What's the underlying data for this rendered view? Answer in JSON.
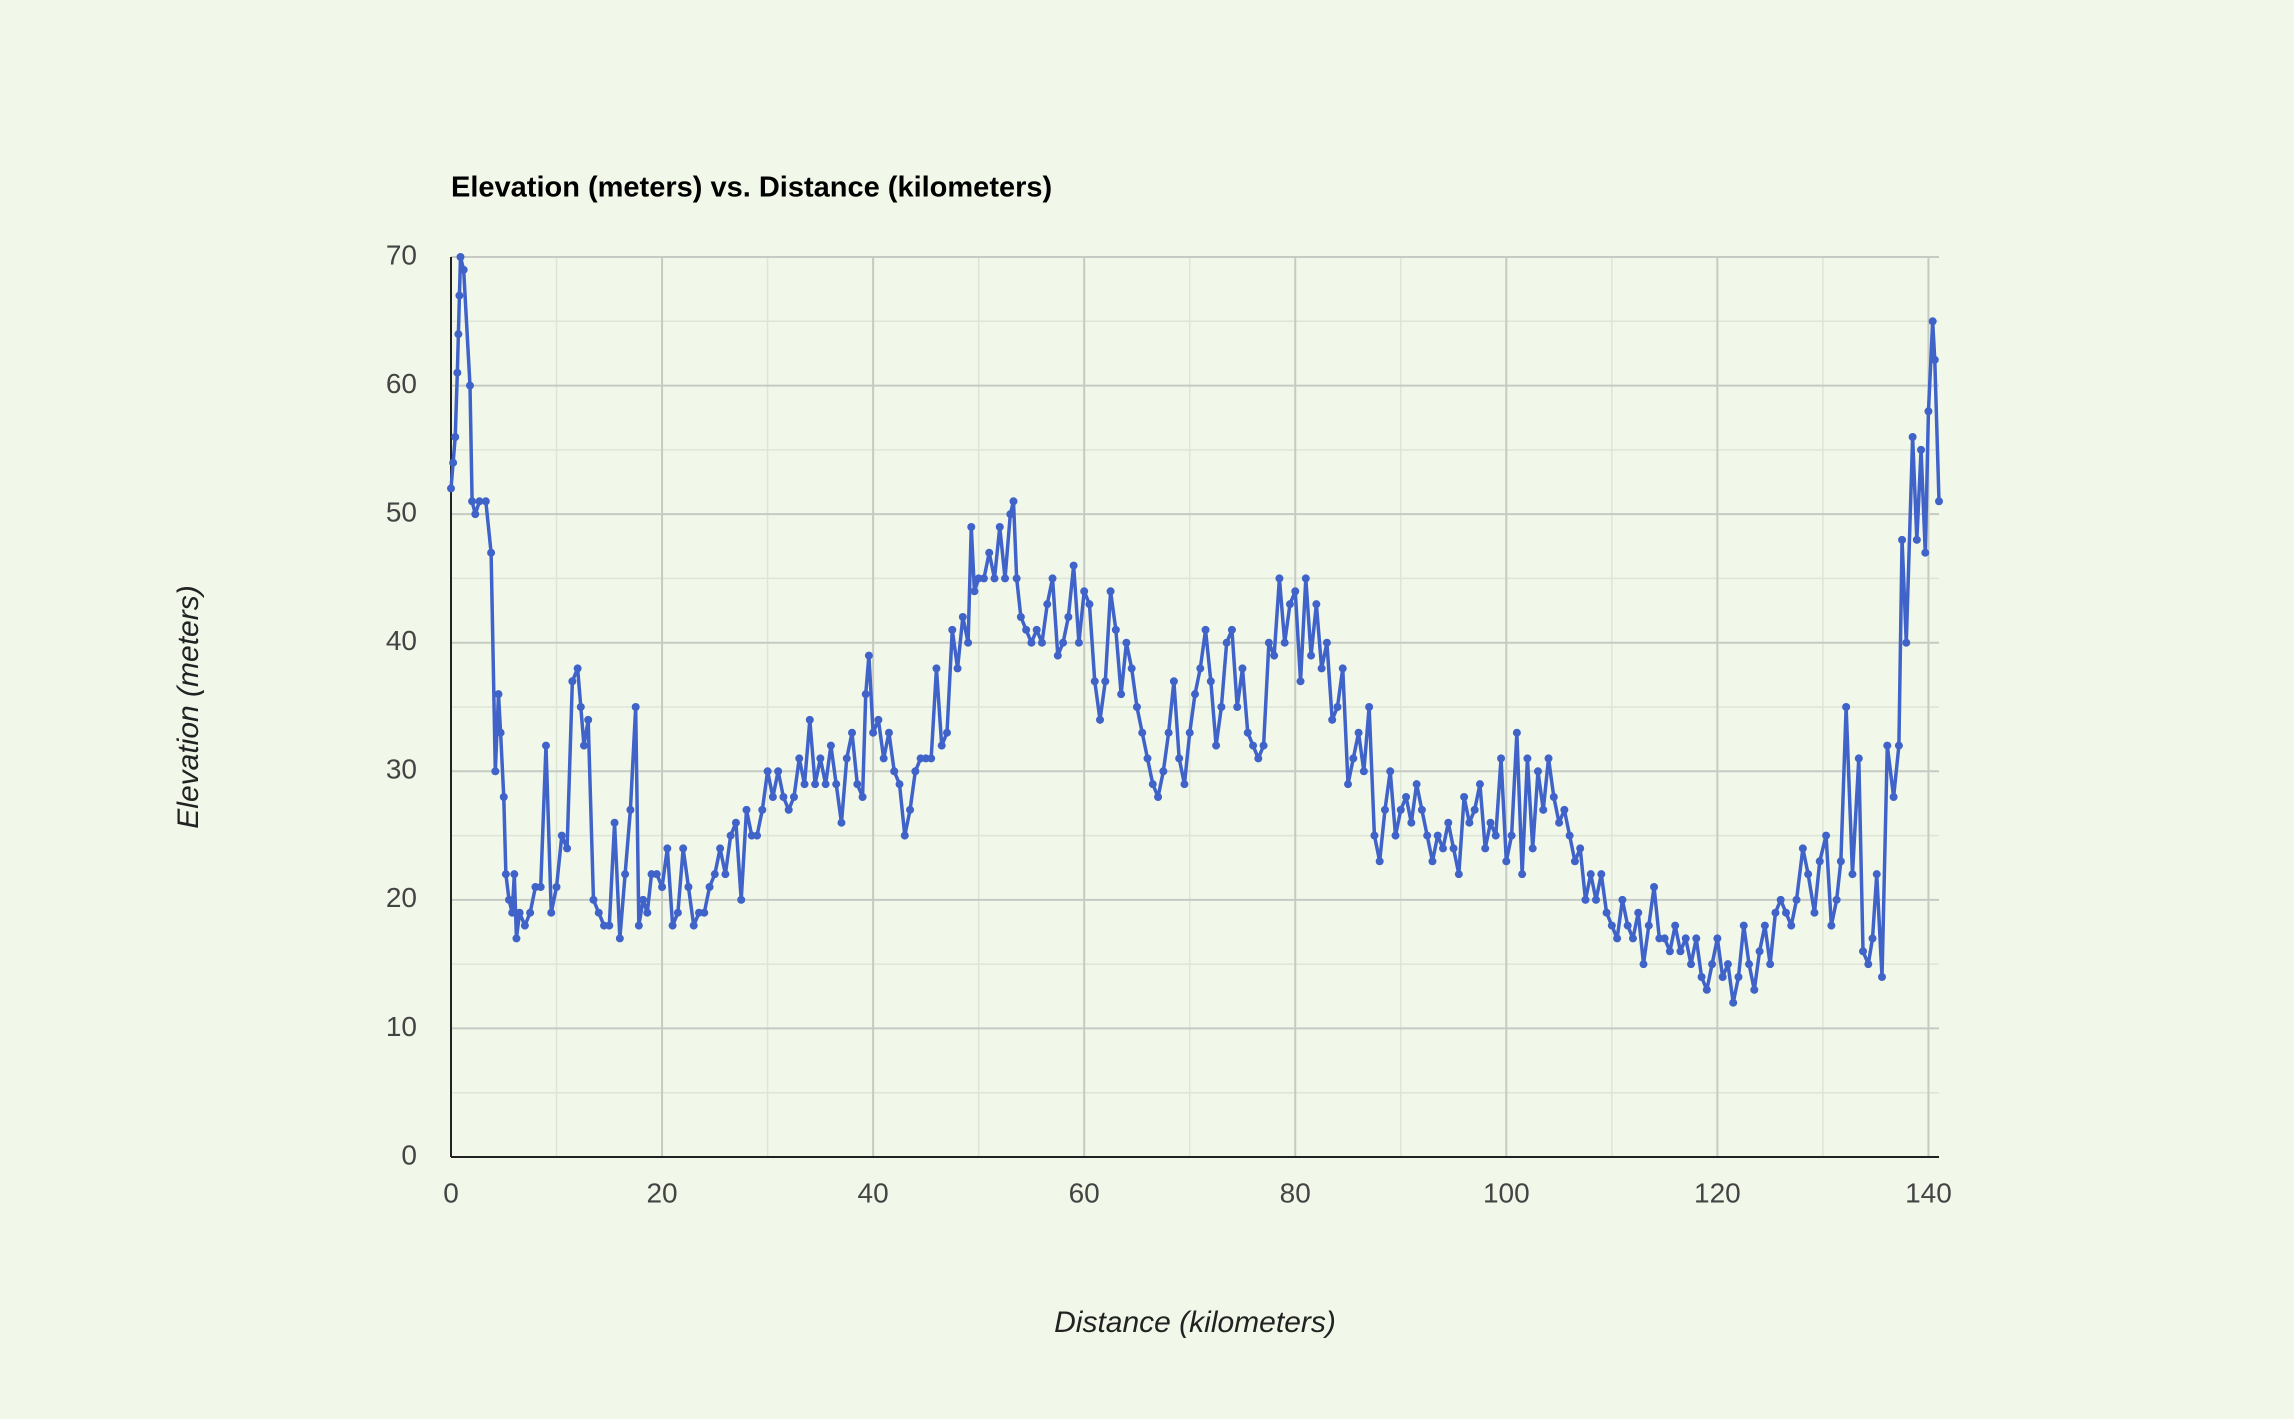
{
  "chart_data": {
    "type": "line",
    "title": "Elevation (meters) vs. Distance (kilometers)",
    "x_label": "Distance (kilometers)",
    "y_label": "Elevation (meters)",
    "color": "#4063c9",
    "grid": true,
    "minor_grid": true,
    "markers": true,
    "xlim": [
      0,
      141
    ],
    "xticks": [
      0,
      20,
      40,
      60,
      80,
      100,
      120,
      140
    ],
    "ylim": [
      0,
      70
    ],
    "yticks": [
      0,
      10,
      20,
      30,
      40,
      50,
      60,
      70
    ],
    "x": [
      0,
      0.2,
      0.4,
      0.6,
      0.7,
      0.8,
      0.9,
      1.2,
      1.8,
      2.0,
      2.3,
      2.7,
      3.3,
      3.8,
      4.2,
      4.5,
      4.7,
      5.0,
      5.2,
      5.5,
      5.8,
      6.0,
      6.2,
      6.5,
      7.0,
      7.5,
      8,
      8.5,
      9,
      9.5,
      10,
      10.5,
      11,
      11.5,
      12,
      12.3,
      12.6,
      13,
      13.5,
      14,
      14.5,
      15,
      15.5,
      16,
      16.5,
      17,
      17.5,
      17.8,
      18.2,
      18.6,
      19,
      19.5,
      20,
      20.5,
      21,
      21.5,
      22,
      22.5,
      23,
      23.5,
      24,
      24.5,
      25,
      25.5,
      26,
      26.5,
      27,
      27.5,
      28,
      28.5,
      29,
      29.5,
      30,
      30.5,
      31,
      31.5,
      32,
      32.5,
      33,
      33.5,
      34,
      34.5,
      35,
      35.5,
      36,
      36.5,
      37,
      37.5,
      38,
      38.5,
      39,
      39.3,
      39.6,
      40,
      40.5,
      41,
      41.5,
      42,
      42.5,
      43,
      43.5,
      44,
      44.5,
      45,
      45.5,
      46,
      46.5,
      47,
      47.5,
      48,
      48.5,
      49,
      49.3,
      49.6,
      50,
      50.5,
      51,
      51.5,
      52,
      52.5,
      53,
      53.3,
      53.6,
      54,
      54.5,
      55,
      55.5,
      56,
      56.5,
      57,
      57.5,
      58,
      58.5,
      59,
      59.5,
      60,
      60.5,
      61,
      61.5,
      62,
      62.5,
      63,
      63.5,
      64,
      64.5,
      65,
      65.5,
      66,
      66.5,
      67,
      67.5,
      68,
      68.5,
      69,
      69.5,
      70,
      70.5,
      71,
      71.5,
      72,
      72.5,
      73,
      73.5,
      74,
      74.5,
      75,
      75.5,
      76,
      76.5,
      77,
      77.5,
      78,
      78.5,
      79,
      79.5,
      80,
      80.5,
      81,
      81.5,
      82,
      82.5,
      83,
      83.5,
      84,
      84.5,
      85,
      85.5,
      86,
      86.5,
      87,
      87.5,
      88,
      88.5,
      89,
      89.5,
      90,
      90.5,
      91,
      91.5,
      92,
      92.5,
      93,
      93.5,
      94,
      94.5,
      95,
      95.5,
      96,
      96.5,
      97,
      97.5,
      98,
      98.5,
      99,
      99.5,
      100,
      100.5,
      101,
      101.5,
      102,
      102.5,
      103,
      103.5,
      104,
      104.5,
      105,
      105.5,
      106,
      106.5,
      107,
      107.5,
      108,
      108.5,
      109,
      109.5,
      110,
      110.5,
      111,
      111.5,
      112,
      112.5,
      113,
      113.5,
      114,
      114.5,
      115,
      115.5,
      116,
      116.5,
      117,
      117.5,
      118,
      118.5,
      119,
      119.5,
      120,
      120.5,
      121,
      121.5,
      122,
      122.5,
      123,
      123.5,
      124,
      124.5,
      125,
      125.5,
      126,
      126.5,
      127,
      127.5,
      128.1,
      128.6,
      129.2,
      129.7,
      130.3,
      130.8,
      131.3,
      131.7,
      132.2,
      132.8,
      133.4,
      133.8,
      134.3,
      134.7,
      135.1,
      135.6,
      136.1,
      136.7,
      137.2,
      137.5,
      137.9,
      138.5,
      138.9,
      139.3,
      139.7,
      140,
      140.4,
      140.6,
      141
    ],
    "values": [
      52,
      54,
      56,
      61,
      64,
      67,
      70,
      69,
      60,
      51,
      50,
      51,
      51,
      47,
      30,
      36,
      33,
      28,
      22,
      20,
      19,
      22,
      17,
      19,
      18,
      19,
      21,
      21,
      32,
      19,
      21,
      25,
      24,
      37,
      38,
      35,
      32,
      34,
      20,
      19,
      18,
      18,
      26,
      17,
      22,
      27,
      35,
      18,
      20,
      19,
      22,
      22,
      21,
      24,
      18,
      19,
      24,
      21,
      18,
      19,
      19,
      21,
      22,
      24,
      22,
      25,
      26,
      20,
      27,
      25,
      25,
      27,
      30,
      28,
      30,
      28,
      27,
      28,
      31,
      29,
      34,
      29,
      31,
      29,
      32,
      29,
      26,
      31,
      33,
      29,
      28,
      36,
      39,
      33,
      34,
      31,
      33,
      30,
      29,
      25,
      27,
      30,
      31,
      31,
      31,
      38,
      32,
      33,
      41,
      38,
      42,
      40,
      49,
      44,
      45,
      45,
      47,
      45,
      49,
      45,
      50,
      51,
      45,
      42,
      41,
      40,
      41,
      40,
      43,
      45,
      39,
      40,
      42,
      46,
      40,
      44,
      43,
      37,
      34,
      37,
      44,
      41,
      36,
      40,
      38,
      35,
      33,
      31,
      29,
      28,
      30,
      33,
      37,
      31,
      29,
      33,
      36,
      38,
      41,
      37,
      32,
      35,
      40,
      41,
      35,
      38,
      33,
      32,
      31,
      32,
      40,
      39,
      45,
      40,
      43,
      44,
      37,
      45,
      39,
      43,
      38,
      40,
      34,
      35,
      38,
      29,
      31,
      33,
      30,
      35,
      25,
      23,
      27,
      30,
      25,
      27,
      28,
      26,
      29,
      27,
      25,
      23,
      25,
      24,
      26,
      24,
      22,
      28,
      26,
      27,
      29,
      24,
      26,
      25,
      31,
      23,
      25,
      33,
      22,
      31,
      24,
      30,
      27,
      31,
      28,
      26,
      27,
      25,
      23,
      24,
      20,
      22,
      20,
      22,
      19,
      18,
      17,
      20,
      18,
      17,
      19,
      15,
      18,
      21,
      17,
      17,
      16,
      18,
      16,
      17,
      15,
      17,
      14,
      13,
      15,
      17,
      14,
      15,
      12,
      14,
      18,
      15,
      13,
      16,
      18,
      15,
      19,
      20,
      19,
      18,
      20,
      24,
      22,
      19,
      23,
      25,
      18,
      20,
      23,
      35,
      22,
      31,
      16,
      15,
      17,
      22,
      14,
      32,
      28,
      32,
      48,
      40,
      56,
      48,
      55,
      47,
      58,
      65,
      62,
      51
    ]
  }
}
